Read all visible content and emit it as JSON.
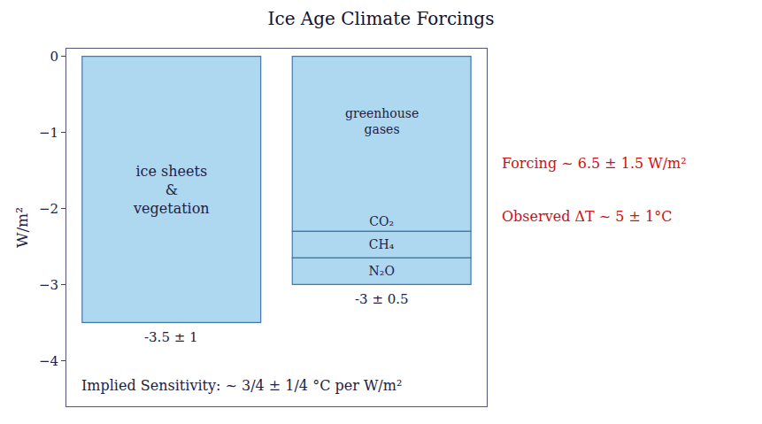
{
  "chart_data": {
    "type": "bar",
    "title": "Ice Age Climate Forcings",
    "ylabel": "W/m²",
    "categories": [
      "ice sheets\n&\nvegetation",
      "greenhouse\ngases"
    ],
    "stacked": true,
    "series": [
      {
        "color": "#add8f0",
        "values": [
          -3.5,
          null
        ]
      },
      {
        "name": "CO₂",
        "color": "#add8f0",
        "values": [
          null,
          -2.3
        ]
      },
      {
        "name": "CH₄",
        "color": "#add8f0",
        "values": [
          null,
          -0.35
        ]
      },
      {
        "name": "N₂O",
        "color": "#add8f0",
        "values": [
          null,
          -0.35
        ]
      }
    ],
    "ylim": [
      -4.6,
      0.1
    ],
    "yticks": [
      0,
      {
        "value": -1,
        "label": "−1"
      },
      {
        "value": -2,
        "label": "−2"
      },
      {
        "value": -3,
        "label": "−3"
      },
      {
        "value": -4,
        "label": "−4"
      }
    ],
    "tick_labels": "y",
    "grid": false,
    "annotations": [
      {
        "text": "-3.5 ± 1",
        "x": 0
      },
      {
        "text": "-3 ± 0.5",
        "x": 1
      },
      {
        "text": "Forcing ~ 6.5 ± 1.5 W/m²",
        "color": "#cc1111"
      },
      {
        "text": "Observed ΔT ~ 5 ± 1°C",
        "color": "#cc1111"
      },
      {
        "text": "Implied Sensitivity: ~ 3/4 ± 1/4 °C per W/m²"
      }
    ]
  }
}
